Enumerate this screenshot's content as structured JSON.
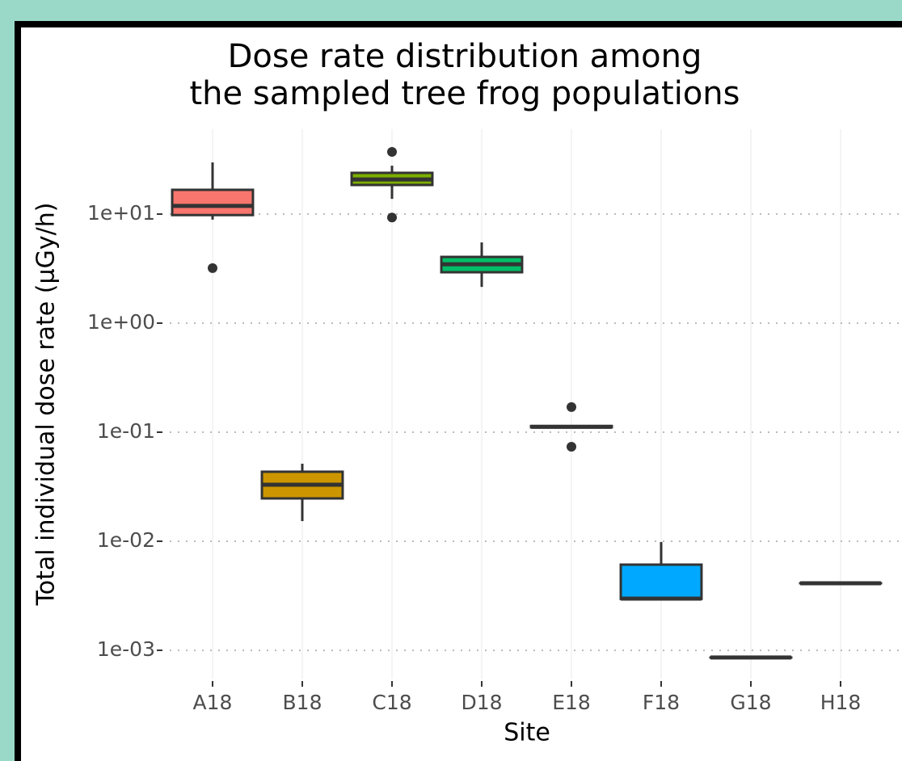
{
  "chart_data": {
    "type": "box",
    "title": [
      "Dose rate distribution among",
      "the sampled tree frog populations"
    ],
    "x_label": "Site",
    "y_label": "Total individual dose rate (µGy/h)",
    "categories": [
      "A18",
      "B18",
      "C18",
      "D18",
      "E18",
      "F18",
      "G18",
      "H18"
    ],
    "colors": [
      "#F8766D",
      "#CD9600",
      "#7CAE00",
      "#00BE67",
      "#00BFC4",
      "#00A9FF",
      "#C77CFF",
      "#FF61CC"
    ],
    "boxes": [
      {
        "min": 8.9,
        "q1": 9.8,
        "median": 11.9,
        "q3": 16.7,
        "max": 29.8,
        "outliers": [
          3.2
        ]
      },
      {
        "min": 0.0153,
        "q1": 0.0247,
        "median": 0.033,
        "q3": 0.0434,
        "max": 0.0514,
        "outliers": []
      },
      {
        "min": 13.8,
        "q1": 18.5,
        "median": 20.8,
        "q3": 23.9,
        "max": 27.8,
        "outliers": [
          37.2,
          9.3
        ]
      },
      {
        "min": 2.15,
        "q1": 2.93,
        "median": 3.47,
        "q3": 4.05,
        "max": 5.5,
        "outliers": []
      },
      {
        "min": 0.111,
        "q1": 0.111,
        "median": 0.112,
        "q3": 0.114,
        "max": 0.114,
        "outliers": [
          0.17,
          0.0736
        ]
      },
      {
        "min": 0.00296,
        "q1": 0.00296,
        "median": 0.00298,
        "q3": 0.0061,
        "max": 0.00984,
        "outliers": []
      },
      {
        "min": 0.000858,
        "q1": 0.000858,
        "median": 0.000858,
        "q3": 0.000858,
        "max": 0.000858,
        "outliers": []
      },
      {
        "min": 0.00412,
        "q1": 0.00412,
        "median": 0.00412,
        "q3": 0.00412,
        "max": 0.00412,
        "outliers": []
      }
    ],
    "log_scale": true,
    "ylim": [
      0.00055,
      60
    ],
    "yticks": [
      {
        "value": 0.001,
        "label": "1e-03"
      },
      {
        "value": 0.01,
        "label": "1e-02"
      },
      {
        "value": 0.1,
        "label": "1e-01"
      },
      {
        "value": 1,
        "label": "1e+00"
      },
      {
        "value": 10,
        "label": "1e+01"
      }
    ],
    "grid": true
  }
}
